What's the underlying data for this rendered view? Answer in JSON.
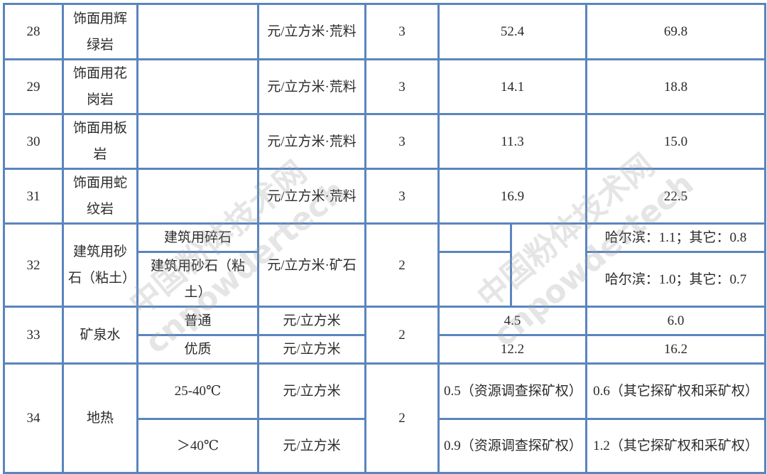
{
  "rows": [
    {
      "no": "28",
      "name": "饰面用辉绿岩",
      "unit": "元/立方米·荒料",
      "rate": "3",
      "v1": "52.4",
      "v2": "69.8"
    },
    {
      "no": "29",
      "name": "饰面用花岗岩",
      "unit": "元/立方米·荒料",
      "rate": "3",
      "v1": "14.1",
      "v2": "18.8"
    },
    {
      "no": "30",
      "name": "饰面用板岩",
      "unit": "元/立方米·荒料",
      "rate": "3",
      "v1": "11.3",
      "v2": "15.0"
    },
    {
      "no": "31",
      "name": "饰面用蛇纹岩",
      "unit": "元/立方米·荒料",
      "rate": "3",
      "v1": "16.9",
      "v2": "22.5"
    }
  ],
  "r32": {
    "no": "32",
    "name": "建筑用砂石（粘土）",
    "sub1": "建筑用碎石",
    "sub2": "建筑用砂石（粘土）",
    "unit": "元/立方米·矿石",
    "rate": "2",
    "v2a": "哈尔滨：1.1；其它：0.8",
    "v2b": "哈尔滨：1.0；其它：0.7"
  },
  "r33": {
    "no": "33",
    "name": "矿泉水",
    "sub1": "普通",
    "sub2": "优质",
    "unit1": "元/立方米",
    "unit2": "元/立方米",
    "rate": "2",
    "v1a": "4.5",
    "v2a": "6.0",
    "v1b": "12.2",
    "v2b": "16.2"
  },
  "r34": {
    "no": "34",
    "name": "地热",
    "sub1": "25-40℃",
    "sub2": "＞40℃",
    "unit1": "元/立方米",
    "unit2": "元/立方米",
    "rate": "2",
    "v1a": "0.5（资源调查探矿权）",
    "v2a": "0.6（其它探矿权和采矿权）",
    "v1b": "0.9（资源调查探矿权）",
    "v2b": "1.2（其它探矿权和采矿权）"
  },
  "watermark": {
    "cn": "中国粉体技术网",
    "en": "cnpowdertech"
  },
  "colors": {
    "border": "#5a85bd"
  }
}
